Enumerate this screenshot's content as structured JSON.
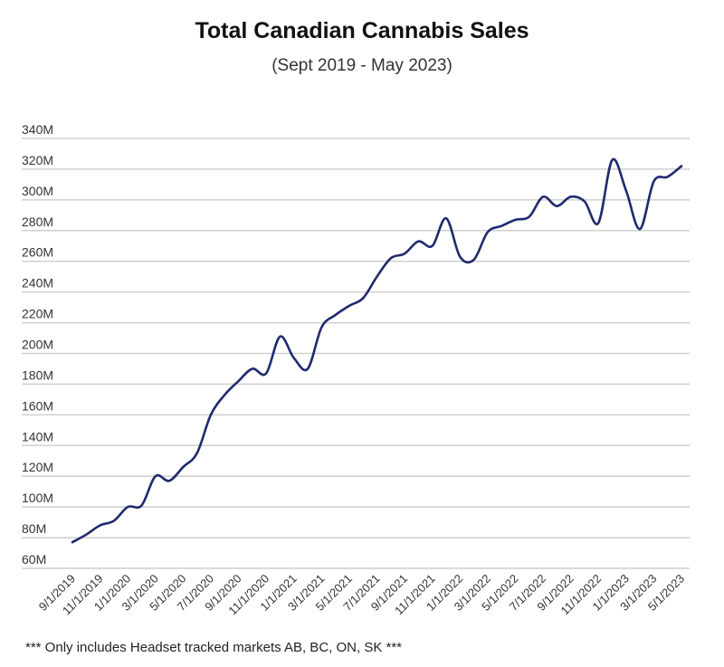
{
  "chart_data": {
    "type": "line",
    "title": "Total Canadian Cannabis Sales",
    "subtitle": "(Sept 2019 - May 2023)",
    "xlabel": "",
    "ylabel": "",
    "ylim": [
      60,
      340
    ],
    "y_unit": "M",
    "y_ticks": [
      "60M",
      "80M",
      "100M",
      "120M",
      "140M",
      "160M",
      "180M",
      "200M",
      "220M",
      "240M",
      "260M",
      "280M",
      "300M",
      "320M",
      "340M"
    ],
    "x_tick_labels": [
      "9/1/2019",
      "11/1/2019",
      "1/1/2020",
      "3/1/2020",
      "5/1/2020",
      "7/1/2020",
      "9/1/2020",
      "11/1/2020",
      "1/1/2021",
      "3/1/2021",
      "5/1/2021",
      "7/1/2021",
      "9/1/2021",
      "11/1/2021",
      "1/1/2022",
      "3/1/2022",
      "5/1/2022",
      "7/1/2022",
      "9/1/2022",
      "11/1/2022",
      "1/1/2023",
      "3/1/2023",
      "5/1/2023"
    ],
    "grid": true,
    "legend": "none",
    "series": [
      {
        "name": "Total Canadian Cannabis Sales",
        "color": "#1f2a6e",
        "x": [
          "9/1/2019",
          "10/1/2019",
          "11/1/2019",
          "12/1/2019",
          "1/1/2020",
          "2/1/2020",
          "3/1/2020",
          "4/1/2020",
          "5/1/2020",
          "6/1/2020",
          "7/1/2020",
          "8/1/2020",
          "9/1/2020",
          "10/1/2020",
          "11/1/2020",
          "12/1/2020",
          "1/1/2021",
          "2/1/2021",
          "3/1/2021",
          "4/1/2021",
          "5/1/2021",
          "6/1/2021",
          "7/1/2021",
          "8/1/2021",
          "9/1/2021",
          "10/1/2021",
          "11/1/2021",
          "12/1/2021",
          "1/1/2022",
          "2/1/2022",
          "3/1/2022",
          "4/1/2022",
          "5/1/2022",
          "6/1/2022",
          "7/1/2022",
          "8/1/2022",
          "9/1/2022",
          "10/1/2022",
          "11/1/2022",
          "12/1/2022",
          "1/1/2023",
          "2/1/2023",
          "3/1/2023",
          "4/1/2023",
          "5/1/2023"
        ],
        "values": [
          77,
          82,
          88,
          91,
          100,
          101,
          120,
          117,
          126,
          135,
          160,
          173,
          182,
          190,
          187,
          211,
          197,
          190,
          217,
          225,
          231,
          236,
          250,
          262,
          265,
          273,
          270,
          288,
          263,
          261,
          279,
          283,
          287,
          289,
          302,
          296,
          302,
          299,
          285,
          326,
          306,
          281,
          312,
          315,
          322
        ]
      }
    ]
  },
  "footnote": "*** Only includes Headset tracked markets AB, BC, ON, SK ***"
}
